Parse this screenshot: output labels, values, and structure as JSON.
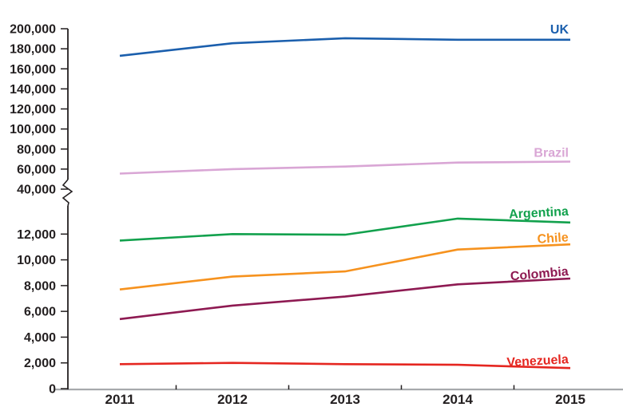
{
  "chart_data": {
    "type": "line",
    "title": "",
    "xlabel": "",
    "ylabel": "",
    "grid": false,
    "legend_position": "labels-at-line-ends",
    "x_labels": [
      "2011",
      "2012",
      "2013",
      "2014",
      "2015"
    ],
    "y_axis": {
      "axis_break": true,
      "upper_range": [
        40000,
        200000
      ],
      "lower_range": [
        0,
        14000
      ],
      "upper_tick_labels": [
        "200,000",
        "180,000",
        "160,000",
        "140,000",
        "120,000",
        "100,000",
        "80,000",
        "60,000",
        "40,000"
      ],
      "lower_tick_labels": [
        "12,000",
        "10,000",
        "8,000",
        "6,000",
        "4,000",
        "2,000",
        "0"
      ]
    },
    "series": [
      {
        "name": "UK",
        "color": "#1b5fad",
        "values": [
          173000,
          185500,
          190500,
          189000,
          189000
        ],
        "label_rotation": 0,
        "label_dy": -8
      },
      {
        "name": "Brazil",
        "color": "#d9a6d5",
        "values": [
          55500,
          60000,
          62500,
          66500,
          67500
        ],
        "label_rotation": 0,
        "label_dy": -6
      },
      {
        "name": "Argentina",
        "color": "#12a14d",
        "values": [
          11500,
          12000,
          11950,
          13200,
          12900
        ],
        "label_rotation": -3,
        "label_dy": -9
      },
      {
        "name": "Chile",
        "color": "#f6921e",
        "values": [
          7700,
          8700,
          9100,
          10800,
          11200
        ],
        "label_rotation": -4,
        "label_dy": -4
      },
      {
        "name": "Colombia",
        "color": "#8e1a52",
        "values": [
          5400,
          6450,
          7150,
          8100,
          8550
        ],
        "label_rotation": -5,
        "label_dy": -4
      },
      {
        "name": "Venezuela",
        "color": "#e52620",
        "values": [
          1900,
          2000,
          1900,
          1850,
          1600
        ],
        "label_rotation": -3,
        "label_dy": -6
      }
    ]
  },
  "colors": {
    "background": "#ffffff",
    "axis": "#231f20",
    "x_axis_line": "#a7a9ac",
    "text": "#231f20"
  }
}
